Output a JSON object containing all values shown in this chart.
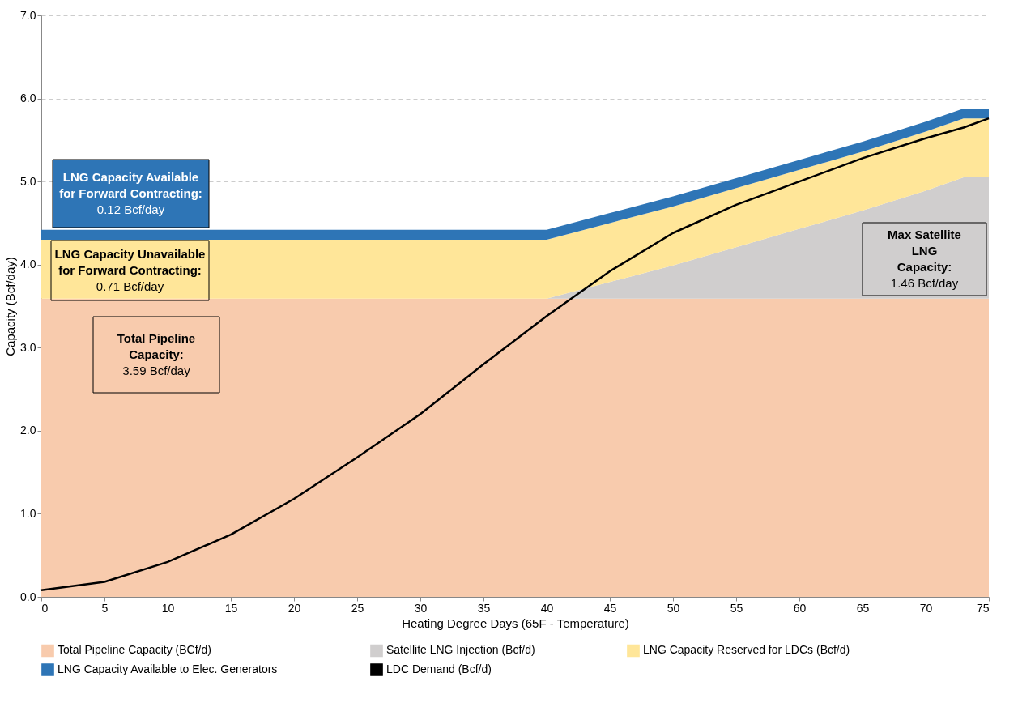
{
  "chart_data": {
    "type": "area",
    "stacked": true,
    "xlabel": "Heating Degree Days (65F -  Temperature)",
    "ylabel": "Capacity (Bcf/day)",
    "x": [
      0,
      5,
      10,
      15,
      20,
      25,
      30,
      35,
      40,
      45,
      50,
      55,
      60,
      65,
      70,
      73,
      75
    ],
    "series": [
      {
        "name": "Total Pipeline Capacity (BCf/d)",
        "color": "#f8cbad",
        "values": [
          3.59,
          3.59,
          3.59,
          3.59,
          3.59,
          3.59,
          3.59,
          3.59,
          3.59,
          3.59,
          3.59,
          3.59,
          3.59,
          3.59,
          3.59,
          3.59,
          3.59
        ]
      },
      {
        "name": "Satellite LNG Injection (Bcf/d)",
        "color": "#d0cece",
        "values": [
          0,
          0,
          0,
          0,
          0,
          0,
          0,
          0,
          0,
          0.2,
          0.4,
          0.62,
          0.84,
          1.06,
          1.3,
          1.46,
          1.46
        ]
      },
      {
        "name": "LNG Capacity Reserved for LDCs (Bcf/d)",
        "color": "#ffe699",
        "values": [
          0.71,
          0.71,
          0.71,
          0.71,
          0.71,
          0.71,
          0.71,
          0.71,
          0.71,
          0.71,
          0.71,
          0.71,
          0.71,
          0.71,
          0.71,
          0.71,
          0.71
        ]
      },
      {
        "name": "LNG Capacity Available to Elec. Generators",
        "color": "#2e75b6",
        "values": [
          0.12,
          0.12,
          0.12,
          0.12,
          0.12,
          0.12,
          0.12,
          0.12,
          0.12,
          0.12,
          0.12,
          0.12,
          0.12,
          0.12,
          0.12,
          0.12,
          0.12
        ]
      },
      {
        "name": "LDC Demand (Bcf/d)",
        "color": "#000000",
        "type": "line",
        "values": [
          0.08,
          0.18,
          0.42,
          0.75,
          1.18,
          1.68,
          2.2,
          2.8,
          3.38,
          3.92,
          4.38,
          4.72,
          5.0,
          5.28,
          5.52,
          5.65,
          5.76
        ]
      }
    ],
    "xlim": [
      0,
      75
    ],
    "xticks": [
      0,
      5,
      10,
      15,
      20,
      25,
      30,
      35,
      40,
      45,
      50,
      55,
      60,
      65,
      70,
      75
    ],
    "ylim": [
      0,
      7
    ],
    "yticks": [
      {
        "value": 0,
        "label": "0.0"
      },
      {
        "value": 1,
        "label": "1.0"
      },
      {
        "value": 2,
        "label": "2.0"
      },
      {
        "value": 3,
        "label": "3.0"
      },
      {
        "value": 4,
        "label": "4.0"
      },
      {
        "value": 5,
        "label": "5.0"
      },
      {
        "value": 6,
        "label": "6.0"
      },
      {
        "value": 7,
        "label": "7.0"
      }
    ],
    "grid": "y",
    "legend": "bottom",
    "annotations": [
      "LNG Capacity Available\nfor Forward Contracting:\n0.12 Bcf/day",
      "LNG Capacity Unavailable\nfor Forward Contracting:\n0.71 Bcf/day",
      "Total Pipeline\nCapacity:\n3.59 Bcf/day",
      "Max Satellite\nLNG\nCapacity:\n1.46 Bcf/day"
    ]
  }
}
